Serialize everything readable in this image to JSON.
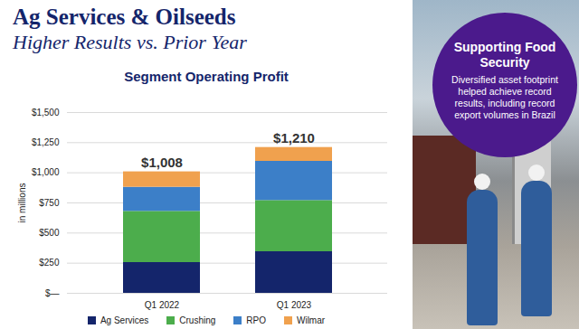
{
  "header": {
    "title": "Ag Services & Oilseeds",
    "subtitle": "Higher Results vs. Prior Year"
  },
  "callout": {
    "title": "Supporting Food Security",
    "text": "Diversified asset footprint helped achieve record results, including record export volumes in Brazil"
  },
  "chart_data": {
    "type": "bar",
    "title": "Segment Operating Profit",
    "y_label": "in millions",
    "categories": [
      "Q1 2022",
      "Q1 2023"
    ],
    "series": [
      {
        "name": "Ag Services",
        "color": "#14256b",
        "values": [
          255,
          345
        ]
      },
      {
        "name": "Crushing",
        "color": "#4cad4c",
        "values": [
          425,
          425
        ]
      },
      {
        "name": "RPO",
        "color": "#3c7fc8",
        "values": [
          200,
          325
        ]
      },
      {
        "name": "Wilmar",
        "color": "#f0a14e",
        "values": [
          128,
          115
        ]
      }
    ],
    "totals": [
      1008,
      1210
    ],
    "total_labels": [
      "$1,008",
      "$1,210"
    ],
    "stacked": true,
    "grid": true,
    "legend": "bottom",
    "ylim": [
      0,
      1500
    ],
    "yticks": [
      {
        "value": 0,
        "label": "$—"
      },
      {
        "value": 250,
        "label": "$250"
      },
      {
        "value": 500,
        "label": "$500"
      },
      {
        "value": 750,
        "label": "$750"
      },
      {
        "value": 1000,
        "label": "$1,000"
      },
      {
        "value": 1250,
        "label": "$1,250"
      },
      {
        "value": 1500,
        "label": "$1,500"
      }
    ]
  }
}
